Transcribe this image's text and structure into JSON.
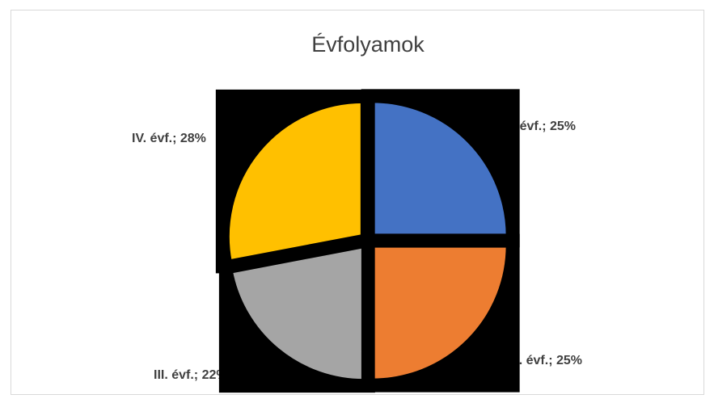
{
  "chart_data": {
    "type": "pie",
    "title": "Évfolyamok",
    "categories": [
      "I. évf.",
      "II. évf.",
      "III. évf.",
      "IV. évf."
    ],
    "values": [
      25,
      25,
      22,
      28
    ],
    "value_labels": [
      "I. évf.; 25%",
      "II. évf.; 25%",
      "III. évf.; 22%",
      "IV. évf.; 28%"
    ],
    "colors": [
      "#4472c4",
      "#ed7d31",
      "#a5a5a5",
      "#ffc000"
    ]
  }
}
